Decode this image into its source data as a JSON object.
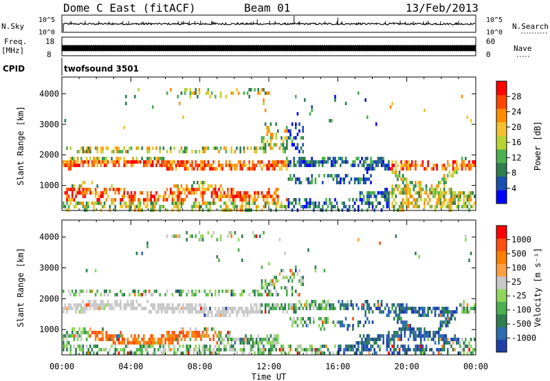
{
  "header": {
    "title": "Dome C East (fitACF)",
    "beam": "Beam 01",
    "date": "13/Feb/2013"
  },
  "top_panels": {
    "nsky_label": "N.Sky",
    "nsky_ticks": [
      "10^5",
      "10^0"
    ],
    "nsearch_label": "N.Search",
    "nsearch_ticks": [
      "10^5",
      "10^0"
    ],
    "freq_label_1": "Freq.",
    "freq_label_2": "[MHz]",
    "freq_ticks": [
      "18",
      "8"
    ],
    "nave_label": "Nave",
    "nave_ticks": [
      "60",
      "0"
    ],
    "cpid_label": "CPID",
    "cpid_value": "twofsound 3501"
  },
  "colors": {
    "power": [
      "#0000ff",
      "#1a50b0",
      "#2e7d4f",
      "#4caf50",
      "#b8d432",
      "#f5c12e",
      "#ff8c00",
      "#ff4500",
      "#ff0000"
    ],
    "velocity": [
      "#1f3fa8",
      "#2e6bb0",
      "#2e7d4f",
      "#4caf50",
      "#8fd65a",
      "#c8c8c8",
      "#ffa040",
      "#ff8000",
      "#ff5010",
      "#ff0000"
    ]
  },
  "chart_data": [
    {
      "type": "heatmap",
      "name": "power-panel",
      "xlabel": "Time UT",
      "ylabel": "Slant Range [km]",
      "xlim": [
        "00:00",
        "24:00"
      ],
      "ylim": [
        180,
        4550
      ],
      "x_ticks": [
        "00:00",
        "04:00",
        "08:00",
        "12:00",
        "16:00",
        "20:00",
        "00:00"
      ],
      "y_ticks": [
        1000,
        2000,
        3000,
        4000
      ],
      "colorbar": {
        "label": "Power [dB]",
        "ticks": [
          "4",
          "8",
          "12",
          "16",
          "20",
          "24",
          "28"
        ],
        "range": [
          0,
          30
        ]
      },
      "grid": false
    },
    {
      "type": "heatmap",
      "name": "velocity-panel",
      "xlabel": "Time UT",
      "ylabel": "Slant Range [km]",
      "xlim": [
        "00:00",
        "24:00"
      ],
      "ylim": [
        180,
        4550
      ],
      "x_ticks": [
        "00:00",
        "04:00",
        "08:00",
        "12:00",
        "16:00",
        "20:00",
        "00:00"
      ],
      "y_ticks": [
        1000,
        2000,
        3000,
        4000
      ],
      "colorbar": {
        "label": "Velocity [m s⁻¹]",
        "ticks": [
          "1000",
          "500",
          "100",
          "25",
          "-25",
          "-100",
          "-500",
          "-1000"
        ]
      },
      "grid": false
    }
  ]
}
